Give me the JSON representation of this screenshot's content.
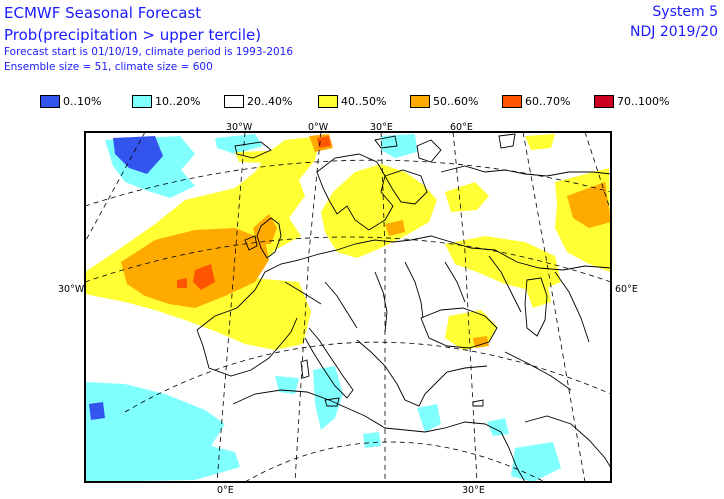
{
  "header": {
    "title": "ECMWF Seasonal Forecast",
    "subtitle": "Prob(precipitation > upper tercile)",
    "forecast_info": "Forecast start is 01/10/19, climate period is 1993-2016",
    "ensemble_info": "Ensemble size = 51, climate size = 600",
    "system": "System 5",
    "season": "NDJ 2019/20"
  },
  "legend": [
    {
      "label": "0..10%",
      "color": "#3355ee"
    },
    {
      "label": "10..20%",
      "color": "#80ffff"
    },
    {
      "label": "20..40%",
      "color": "#ffffff"
    },
    {
      "label": "40..50%",
      "color": "#ffff33"
    },
    {
      "label": "50..60%",
      "color": "#ffaa00"
    },
    {
      "label": "60..70%",
      "color": "#ff5500"
    },
    {
      "label": "70..100%",
      "color": "#cc0022"
    }
  ],
  "axes": {
    "top": [
      "30°W",
      "0°W",
      "30°E",
      "60°E"
    ],
    "bottom": [
      "0°E",
      "30°E"
    ],
    "left": [
      "30°W"
    ],
    "right": [
      "60°E"
    ]
  }
}
